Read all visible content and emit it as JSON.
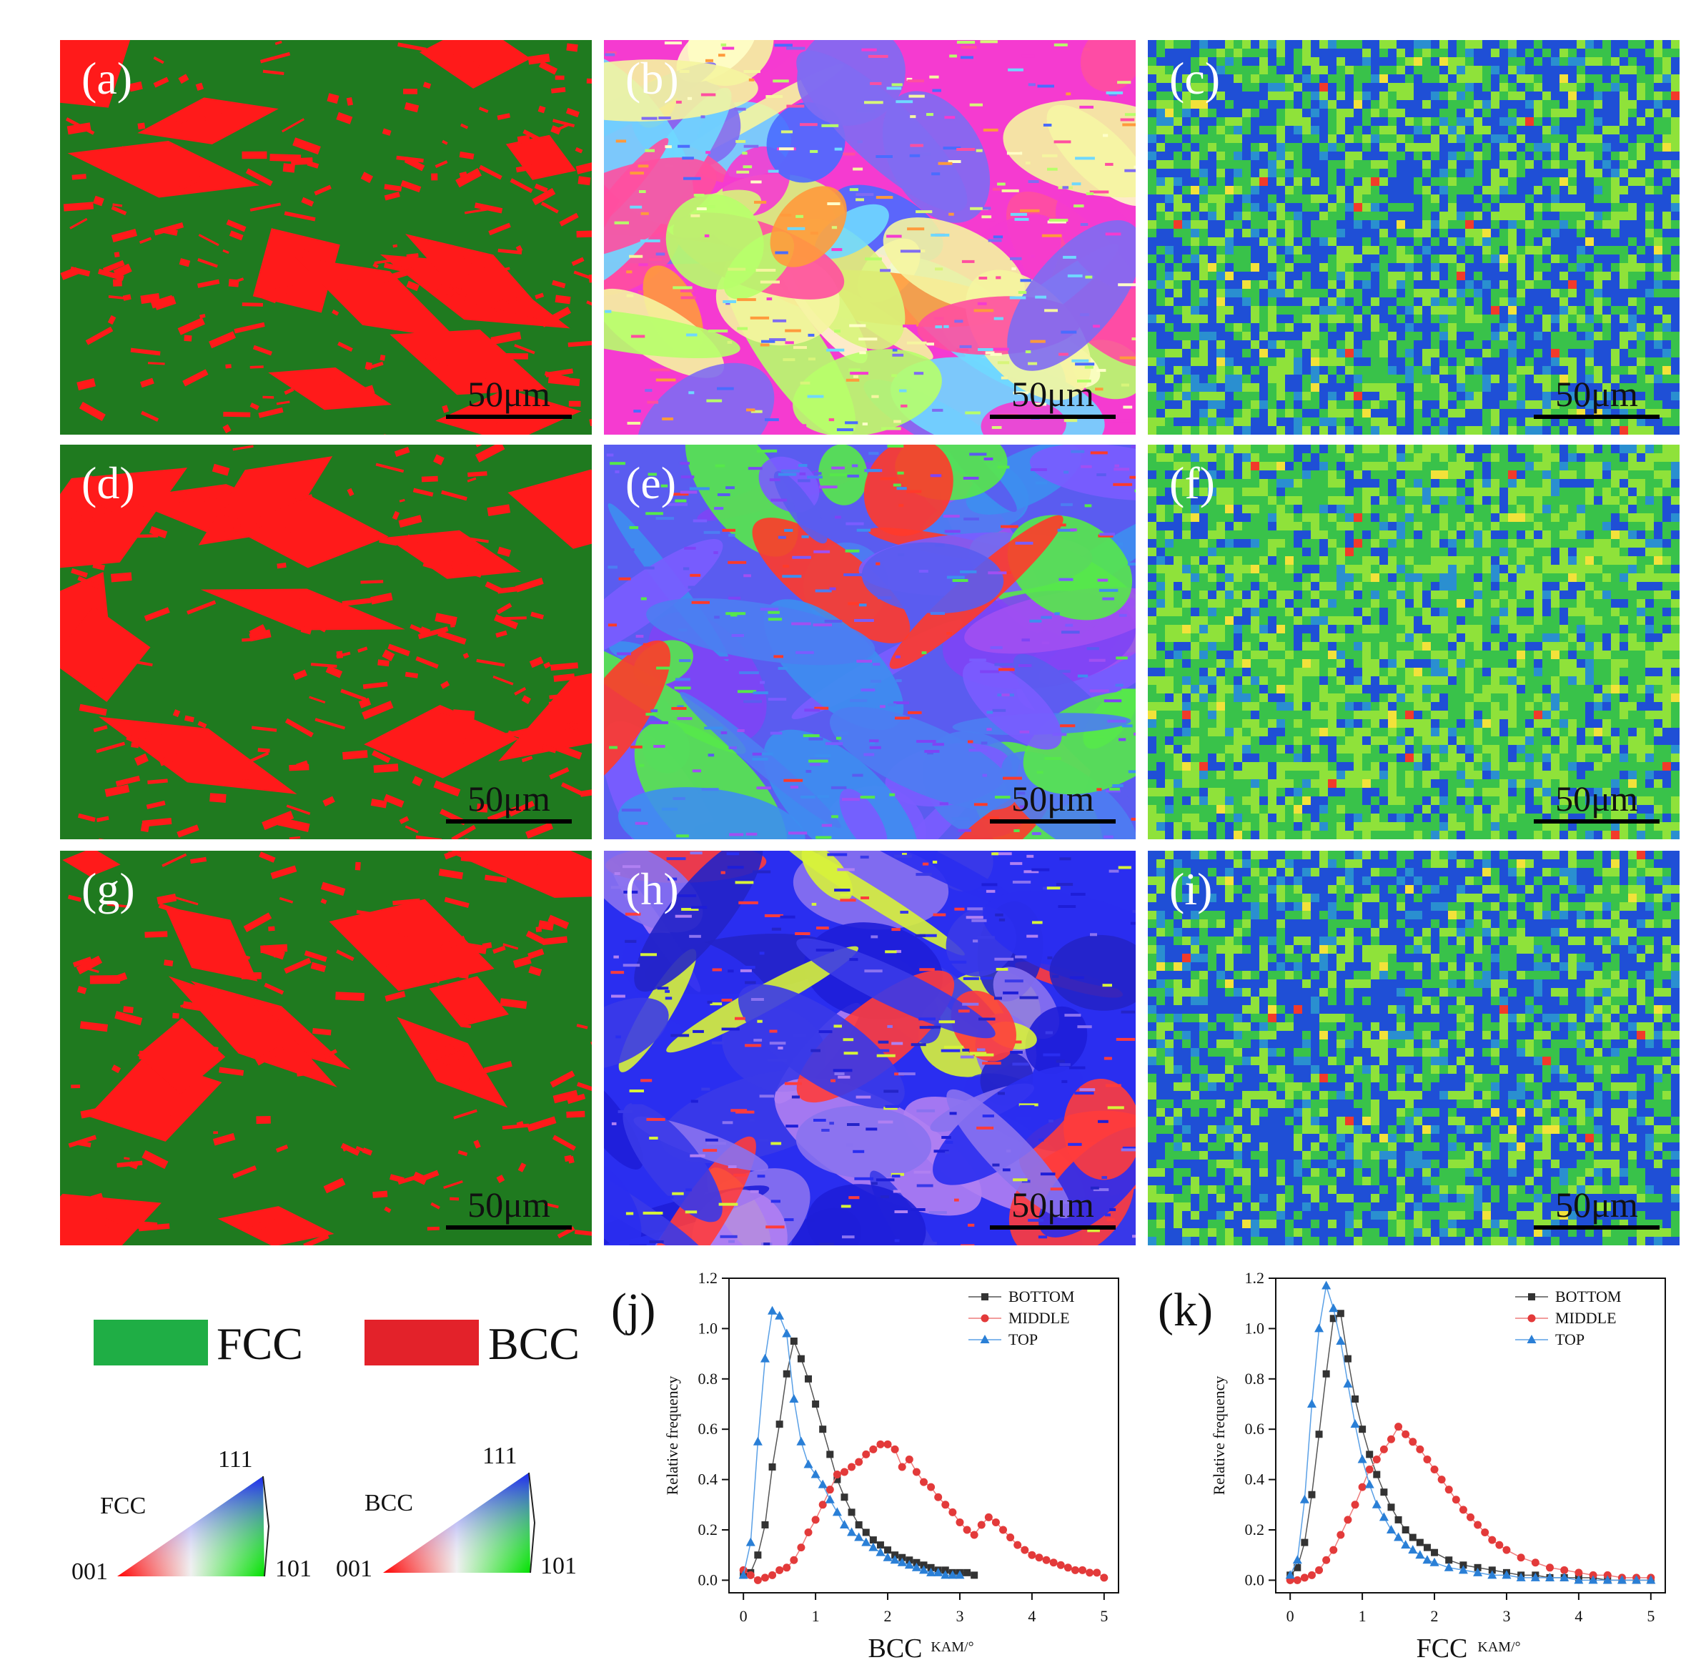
{
  "colors": {
    "fcc": "#1f7a1f",
    "bcc": "#ff1a1a",
    "legend_fcc": "#1fae45",
    "legend_bcc": "#e3222a",
    "bottom": "#333333",
    "middle": "#e33a3a",
    "top": "#2a7fd6"
  },
  "panels": [
    {
      "label": "(a)",
      "scale": "50μm",
      "type": "phase",
      "fraction": 0.32,
      "seed": 11
    },
    {
      "label": "(b)",
      "scale": "50μm",
      "type": "ipf",
      "palette": [
        "#f53bd0",
        "#7f6cf2",
        "#ffffc8",
        "#6fd8ff",
        "#f5f5a0",
        "#ff9a3c",
        "#d8f57a",
        "#4a6cff",
        "#ff4fa0",
        "#b7ff6a"
      ],
      "seed": 21
    },
    {
      "label": "(c)",
      "scale": "50μm",
      "type": "kam",
      "green": 0.5,
      "seed": 31
    },
    {
      "label": "(d)",
      "scale": "50μm",
      "type": "phase",
      "fraction": 0.3,
      "seed": 41
    },
    {
      "label": "(e)",
      "scale": "50μm",
      "type": "ipf",
      "palette": [
        "#5a5cf0",
        "#4c7df2",
        "#7e44f5",
        "#56e84a",
        "#7a5cff",
        "#a14ff2",
        "#3d8ef0",
        "#ff3a2a"
      ],
      "seed": 51
    },
    {
      "label": "(f)",
      "scale": "50μm",
      "type": "kam",
      "green": 0.75,
      "seed": 61
    },
    {
      "label": "(g)",
      "scale": "50μm",
      "type": "phase",
      "fraction": 0.24,
      "seed": 71
    },
    {
      "label": "(h)",
      "scale": "50μm",
      "type": "ipf",
      "palette": [
        "#2a2ef0",
        "#1e1ed8",
        "#8a72f0",
        "#d7f23a",
        "#2424c8",
        "#b080f2",
        "#ff3c3c",
        "#3a3ae8"
      ],
      "seed": 81
    },
    {
      "label": "(i)",
      "scale": "50μm",
      "type": "kam",
      "green": 0.45,
      "seed": 91
    }
  ],
  "legend": {
    "fcc": "FCC",
    "bcc": "BCC"
  },
  "ipf_keys": [
    {
      "phase": "FCC",
      "v001": "001",
      "v101": "101",
      "v111": "111"
    },
    {
      "phase": "BCC",
      "v001": "001",
      "v101": "101",
      "v111": "111"
    }
  ],
  "chart_data": [
    {
      "type": "line",
      "panel": "(j)",
      "xlabel": "BCC",
      "xlabel_unit": "KAM/°",
      "ylabel": "Relative frequency",
      "xlim": [
        -0.2,
        5.2
      ],
      "ylim": [
        -0.05,
        1.2
      ],
      "xticks": [
        "0",
        "1",
        "2",
        "3",
        "4",
        "5"
      ],
      "yticks": [
        "0.0",
        "0.2",
        "0.4",
        "0.6",
        "0.8",
        "1.0",
        "1.2"
      ],
      "series": [
        {
          "name": "BOTTOM",
          "marker": "square",
          "x": [
            0.0,
            0.1,
            0.2,
            0.3,
            0.4,
            0.5,
            0.6,
            0.7,
            0.8,
            0.9,
            1.0,
            1.1,
            1.2,
            1.3,
            1.4,
            1.5,
            1.6,
            1.7,
            1.8,
            1.9,
            2.0,
            2.1,
            2.2,
            2.3,
            2.4,
            2.5,
            2.6,
            2.7,
            2.8,
            2.9,
            3.0,
            3.1,
            3.2
          ],
          "y": [
            0.02,
            0.03,
            0.1,
            0.22,
            0.45,
            0.62,
            0.82,
            0.95,
            0.88,
            0.8,
            0.7,
            0.6,
            0.5,
            0.4,
            0.33,
            0.27,
            0.22,
            0.19,
            0.16,
            0.14,
            0.12,
            0.1,
            0.09,
            0.08,
            0.07,
            0.06,
            0.05,
            0.04,
            0.04,
            0.03,
            0.03,
            0.03,
            0.02
          ]
        },
        {
          "name": "MIDDLE",
          "marker": "circle",
          "x": [
            0.0,
            0.1,
            0.2,
            0.3,
            0.4,
            0.5,
            0.6,
            0.7,
            0.8,
            0.9,
            1.0,
            1.1,
            1.2,
            1.3,
            1.4,
            1.5,
            1.6,
            1.7,
            1.8,
            1.9,
            2.0,
            2.1,
            2.2,
            2.3,
            2.4,
            2.5,
            2.6,
            2.7,
            2.8,
            2.9,
            3.0,
            3.1,
            3.2,
            3.3,
            3.4,
            3.5,
            3.6,
            3.7,
            3.8,
            3.9,
            4.0,
            4.1,
            4.2,
            4.3,
            4.4,
            4.5,
            4.6,
            4.7,
            4.8,
            4.9,
            5.0
          ],
          "y": [
            0.04,
            0.02,
            0.0,
            0.01,
            0.02,
            0.04,
            0.05,
            0.08,
            0.13,
            0.19,
            0.24,
            0.3,
            0.36,
            0.42,
            0.43,
            0.45,
            0.47,
            0.5,
            0.52,
            0.54,
            0.54,
            0.52,
            0.45,
            0.48,
            0.43,
            0.39,
            0.37,
            0.33,
            0.3,
            0.27,
            0.23,
            0.2,
            0.18,
            0.22,
            0.25,
            0.23,
            0.2,
            0.17,
            0.14,
            0.12,
            0.1,
            0.09,
            0.08,
            0.07,
            0.06,
            0.05,
            0.04,
            0.04,
            0.03,
            0.03,
            0.01
          ]
        },
        {
          "name": "TOP",
          "marker": "triangle",
          "x": [
            0.0,
            0.1,
            0.2,
            0.3,
            0.4,
            0.5,
            0.6,
            0.7,
            0.8,
            0.9,
            1.0,
            1.1,
            1.2,
            1.3,
            1.4,
            1.5,
            1.6,
            1.7,
            1.8,
            1.9,
            2.0,
            2.1,
            2.2,
            2.3,
            2.4,
            2.5,
            2.6,
            2.7,
            2.8,
            2.9,
            3.0
          ],
          "y": [
            0.02,
            0.15,
            0.55,
            0.88,
            1.07,
            1.05,
            0.98,
            0.72,
            0.55,
            0.46,
            0.42,
            0.38,
            0.32,
            0.27,
            0.22,
            0.19,
            0.17,
            0.15,
            0.13,
            0.11,
            0.09,
            0.08,
            0.07,
            0.06,
            0.05,
            0.04,
            0.03,
            0.03,
            0.02,
            0.02,
            0.02
          ]
        }
      ]
    },
    {
      "type": "line",
      "panel": "(k)",
      "xlabel": "FCC",
      "xlabel_unit": "KAM/°",
      "ylabel": "Relative frequency",
      "xlim": [
        -0.2,
        5.2
      ],
      "ylim": [
        -0.05,
        1.2
      ],
      "xticks": [
        "0",
        "1",
        "2",
        "3",
        "4",
        "5"
      ],
      "yticks": [
        "0.0",
        "0.2",
        "0.4",
        "0.6",
        "0.8",
        "1.0",
        "1.2"
      ],
      "series": [
        {
          "name": "BOTTOM",
          "marker": "square",
          "x": [
            0.0,
            0.1,
            0.2,
            0.3,
            0.4,
            0.5,
            0.6,
            0.7,
            0.8,
            0.9,
            1.0,
            1.1,
            1.2,
            1.3,
            1.4,
            1.5,
            1.6,
            1.7,
            1.8,
            1.9,
            2.0,
            2.2,
            2.4,
            2.6,
            2.8,
            3.0,
            3.2,
            3.4,
            3.6,
            3.8,
            4.0,
            4.2,
            4.4,
            4.6,
            4.8,
            5.0
          ],
          "y": [
            0.02,
            0.05,
            0.15,
            0.34,
            0.58,
            0.82,
            1.04,
            1.06,
            0.88,
            0.72,
            0.6,
            0.5,
            0.42,
            0.35,
            0.29,
            0.24,
            0.2,
            0.17,
            0.15,
            0.13,
            0.11,
            0.08,
            0.06,
            0.05,
            0.04,
            0.03,
            0.02,
            0.02,
            0.01,
            0.01,
            0.01,
            0.01,
            0.0,
            0.0,
            0.0,
            0.0
          ]
        },
        {
          "name": "MIDDLE",
          "marker": "circle",
          "x": [
            0.0,
            0.1,
            0.2,
            0.3,
            0.4,
            0.5,
            0.6,
            0.7,
            0.8,
            0.9,
            1.0,
            1.1,
            1.2,
            1.3,
            1.4,
            1.5,
            1.6,
            1.7,
            1.8,
            1.9,
            2.0,
            2.1,
            2.2,
            2.3,
            2.4,
            2.5,
            2.6,
            2.7,
            2.8,
            2.9,
            3.0,
            3.2,
            3.4,
            3.6,
            3.8,
            4.0,
            4.2,
            4.4,
            4.6,
            4.8,
            5.0
          ],
          "y": [
            0.0,
            0.0,
            0.01,
            0.02,
            0.04,
            0.08,
            0.12,
            0.18,
            0.24,
            0.3,
            0.37,
            0.44,
            0.48,
            0.52,
            0.56,
            0.61,
            0.58,
            0.55,
            0.52,
            0.48,
            0.44,
            0.4,
            0.36,
            0.32,
            0.28,
            0.25,
            0.22,
            0.19,
            0.16,
            0.14,
            0.12,
            0.09,
            0.07,
            0.05,
            0.04,
            0.03,
            0.02,
            0.02,
            0.01,
            0.01,
            0.01
          ]
        },
        {
          "name": "TOP",
          "marker": "triangle",
          "x": [
            0.0,
            0.1,
            0.2,
            0.3,
            0.4,
            0.5,
            0.6,
            0.7,
            0.8,
            0.9,
            1.0,
            1.1,
            1.2,
            1.3,
            1.4,
            1.5,
            1.6,
            1.7,
            1.8,
            1.9,
            2.0,
            2.2,
            2.4,
            2.6,
            2.8,
            3.0,
            3.2,
            3.4,
            3.6,
            3.8,
            4.0,
            4.2,
            4.4,
            4.6,
            4.8,
            5.0
          ],
          "y": [
            0.02,
            0.08,
            0.32,
            0.7,
            1.0,
            1.17,
            1.08,
            0.95,
            0.78,
            0.62,
            0.48,
            0.38,
            0.3,
            0.25,
            0.2,
            0.17,
            0.14,
            0.12,
            0.1,
            0.08,
            0.07,
            0.05,
            0.04,
            0.03,
            0.02,
            0.02,
            0.01,
            0.01,
            0.01,
            0.01,
            0.0,
            0.0,
            0.0,
            0.0,
            0.0,
            0.0
          ]
        }
      ]
    }
  ]
}
